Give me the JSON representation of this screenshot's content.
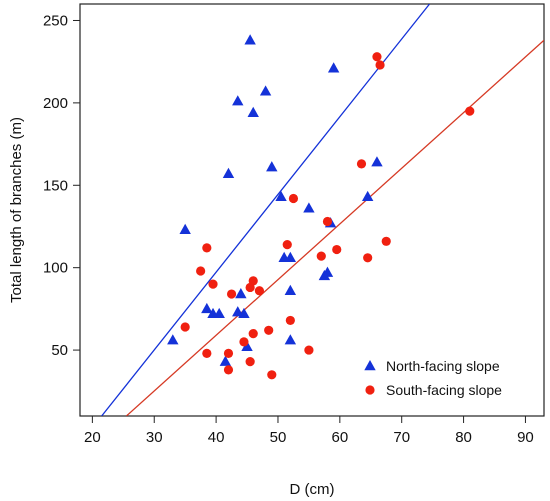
{
  "chart_data": {
    "type": "scatter",
    "title": "",
    "xlabel": "D (cm)",
    "ylabel": "Total length of branches (m)",
    "xlim": [
      18,
      93
    ],
    "ylim": [
      10,
      260
    ],
    "xticks": [
      20,
      30,
      40,
      50,
      60,
      70,
      80,
      90
    ],
    "yticks": [
      50,
      100,
      150,
      200,
      250
    ],
    "grid": false,
    "legend": "bottom-right",
    "series": [
      {
        "name": "North-facing slope",
        "marker": "triangle",
        "color": "#1432d8",
        "points": [
          [
            33.0,
            56
          ],
          [
            35.0,
            123
          ],
          [
            38.5,
            75
          ],
          [
            39.5,
            72
          ],
          [
            40.5,
            72
          ],
          [
            41.5,
            43
          ],
          [
            42.0,
            157
          ],
          [
            43.5,
            201
          ],
          [
            43.5,
            73
          ],
          [
            44.0,
            84
          ],
          [
            44.5,
            72
          ],
          [
            45.5,
            238
          ],
          [
            46.0,
            194
          ],
          [
            48.0,
            207
          ],
          [
            49.0,
            161
          ],
          [
            45.0,
            52
          ],
          [
            50.5,
            143
          ],
          [
            51.0,
            106
          ],
          [
            52.0,
            106
          ],
          [
            52.0,
            86
          ],
          [
            52.0,
            56
          ],
          [
            55.0,
            136
          ],
          [
            57.5,
            95
          ],
          [
            58.0,
            97
          ],
          [
            58.5,
            127
          ],
          [
            59.0,
            221
          ],
          [
            64.5,
            143
          ],
          [
            66.0,
            164
          ]
        ]
      },
      {
        "name": "South-facing slope",
        "marker": "circle",
        "color": "#f02010",
        "points": [
          [
            35.0,
            64
          ],
          [
            37.5,
            98
          ],
          [
            38.5,
            112
          ],
          [
            38.5,
            48
          ],
          [
            39.5,
            90
          ],
          [
            42.0,
            48
          ],
          [
            42.0,
            38
          ],
          [
            42.5,
            84
          ],
          [
            44.5,
            55
          ],
          [
            45.5,
            43
          ],
          [
            46.0,
            60
          ],
          [
            45.5,
            88
          ],
          [
            46.0,
            92
          ],
          [
            47.0,
            86
          ],
          [
            48.5,
            62
          ],
          [
            49.0,
            35
          ],
          [
            51.5,
            114
          ],
          [
            52.0,
            68
          ],
          [
            52.5,
            142
          ],
          [
            55.0,
            50
          ],
          [
            57.0,
            107
          ],
          [
            58.0,
            128
          ],
          [
            59.5,
            111
          ],
          [
            63.5,
            163
          ],
          [
            64.5,
            106
          ],
          [
            66.0,
            228
          ],
          [
            66.5,
            223
          ],
          [
            67.5,
            116
          ],
          [
            81.0,
            195
          ]
        ]
      }
    ],
    "lines": [
      {
        "name": "North-facing slope",
        "color": "#1432d8",
        "x1": 21.5,
        "y1": 10,
        "x2": 74.5,
        "y2": 260
      },
      {
        "name": "South-facing slope",
        "color": "#d63a25",
        "x1": 25.5,
        "y1": 10,
        "x2": 93.0,
        "y2": 238
      }
    ]
  }
}
